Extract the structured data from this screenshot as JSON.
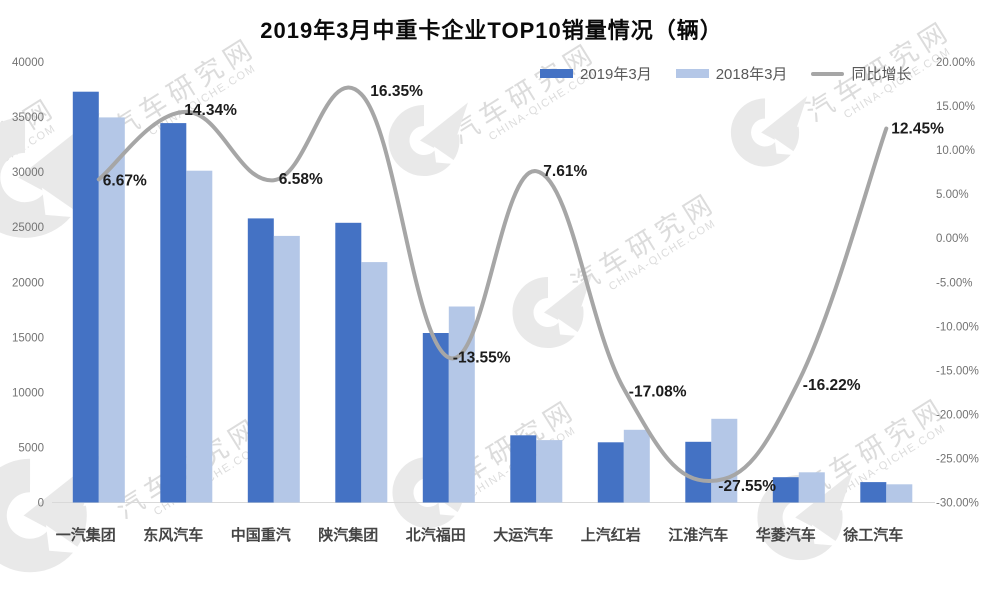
{
  "page": {
    "title": "2019年3月中重卡企业TOP10销量情况（辆）"
  },
  "legend": [
    {
      "label": "2019年3月",
      "color": "#4472C4",
      "marker": "bar"
    },
    {
      "label": "2018年3月",
      "color": "#B4C7E7",
      "marker": "bar"
    },
    {
      "label": "同比增长",
      "color": "#A6A6A6",
      "marker": "line"
    }
  ],
  "watermark": {
    "cn": "汽车研究网",
    "en": "CHINA-QICHE.COM"
  },
  "chart_data": {
    "type": "bar",
    "subtype": "bar+line combo with dual y-axes",
    "title": "2019年3月中重卡企业TOP10销量情况（辆）",
    "categories": [
      "一汽集团",
      "东风汽车",
      "中国重汽",
      "陕汽集团",
      "北汽福田",
      "大运汽车",
      "上汽红岩",
      "江淮汽车",
      "华菱汽车",
      "徐工汽车"
    ],
    "series": [
      {
        "name": "2019年3月",
        "type": "bar",
        "axis": "left",
        "color": "#4472C4",
        "values": [
          37300,
          34450,
          25800,
          25400,
          15390,
          6100,
          5470,
          5510,
          2300,
          1855
        ]
      },
      {
        "name": "2018年3月",
        "type": "bar",
        "axis": "left",
        "color": "#B4C7E7",
        "values": [
          34970,
          30130,
          24210,
          21830,
          17800,
          5670,
          6600,
          7600,
          2745,
          1650
        ]
      },
      {
        "name": "同比增长",
        "type": "line",
        "axis": "right",
        "color": "#A6A6A6",
        "values": [
          6.67,
          14.34,
          6.58,
          16.35,
          -13.55,
          7.61,
          -17.08,
          -27.55,
          -16.22,
          12.45
        ],
        "labels": [
          "6.67%",
          "14.34%",
          "6.58%",
          "16.35%",
          "-13.55%",
          "7.61%",
          "-17.08%",
          "-27.55%",
          "-16.22%",
          "12.45%"
        ]
      }
    ],
    "left_axis": {
      "min": 0,
      "max": 40000,
      "step": 5000,
      "ticks_top_to_bottom": [
        "40000",
        "35000",
        "30000",
        "25000",
        "20000",
        "15000",
        "10000",
        "5000",
        "0"
      ]
    },
    "right_axis": {
      "min": -30,
      "max": 20,
      "step": 5,
      "ticks_top_to_bottom": [
        "20.00%",
        "15.00%",
        "10.00%",
        "5.00%",
        "0.00%",
        "-5.00%",
        "-10.00%",
        "-15.00%",
        "-20.00%",
        "-25.00%",
        "-30.00%"
      ]
    },
    "grid": false,
    "legend_position": "top-right"
  }
}
